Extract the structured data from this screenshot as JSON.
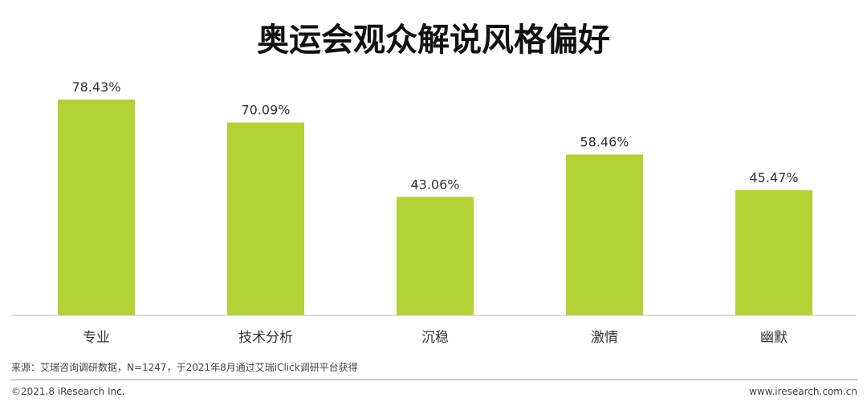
{
  "chart_data": {
    "type": "bar",
    "title": "奥运会观众解说风格偏好",
    "xlabel": "",
    "ylabel": "",
    "categories": [
      "专业",
      "技术分析",
      "沉稳",
      "激情",
      "幽默"
    ],
    "values": [
      78.43,
      70.09,
      43.06,
      58.46,
      45.47
    ],
    "value_labels": [
      "78.43%",
      "70.09%",
      "43.06%",
      "58.46%",
      "45.47%"
    ],
    "unit": "%",
    "ylim": [
      0,
      80
    ],
    "grid": false,
    "legend": "none",
    "bar_color": "#b2d235",
    "axis_color": "#bdbdbd"
  },
  "source_note": "来源：艾瑞咨询调研数据，N=1247，于2021年8月通过艾瑞iClick调研平台获得",
  "footer": {
    "copyright": "©2021.8 iResearch Inc.",
    "website": "www.iresearch.com.cn"
  }
}
